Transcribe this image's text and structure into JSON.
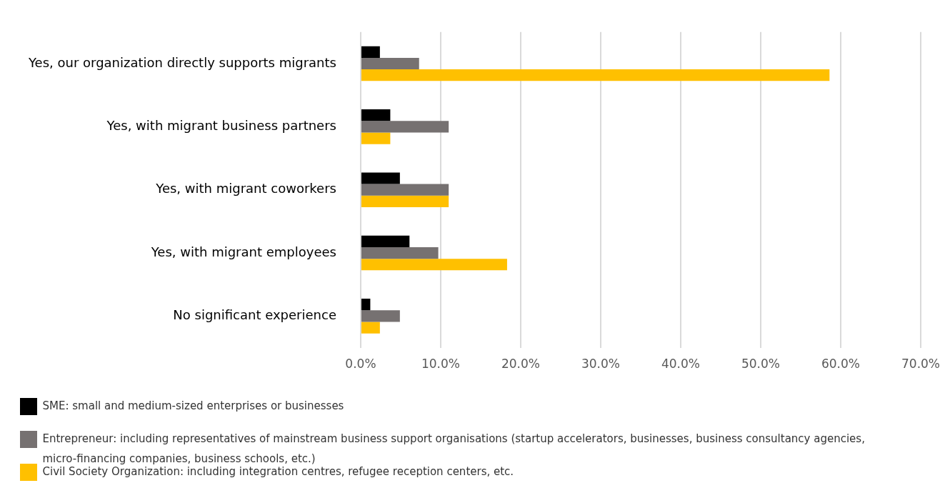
{
  "chart_data": {
    "type": "bar",
    "orientation": "horizontal",
    "categories": [
      "Yes, our organization directly supports migrants",
      "Yes, with migrant business partners",
      "Yes, with migrant coworkers",
      "Yes, with migrant employees",
      "No significant experience"
    ],
    "series": [
      {
        "name": "SME: small and medium-sized enterprises or businesses",
        "color": "#000000",
        "values": [
          2.4,
          3.7,
          4.9,
          6.1,
          1.2
        ]
      },
      {
        "name": "Entrepreneur: including representatives of mainstream business support organisations (startup accelerators, businesses, business consultancy agencies, micro-financing companies, business schools, etc.)",
        "color": "#767171",
        "values": [
          7.3,
          11.0,
          11.0,
          9.7,
          4.9
        ]
      },
      {
        "name": "Civil Society Organization: including integration centres, refugee reception centers, etc.",
        "color": "#ffc000",
        "values": [
          58.6,
          3.7,
          11.0,
          18.3,
          2.4
        ]
      }
    ],
    "xlim": [
      0,
      70
    ],
    "xticks": [
      {
        "value": 0,
        "label": "0.0%"
      },
      {
        "value": 10,
        "label": "10.0%"
      },
      {
        "value": 20,
        "label": "20.0%"
      },
      {
        "value": 30,
        "label": "30.0%"
      },
      {
        "value": 40,
        "label": "40.0%"
      },
      {
        "value": 50,
        "label": "50.0%"
      },
      {
        "value": 60,
        "label": "60.0%"
      },
      {
        "value": 70,
        "label": "70.0%"
      }
    ],
    "grid": "x",
    "legend": "bottom"
  }
}
